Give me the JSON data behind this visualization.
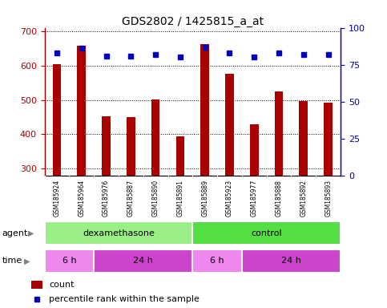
{
  "title": "GDS2802 / 1425815_a_at",
  "samples": [
    "GSM185924",
    "GSM185964",
    "GSM185976",
    "GSM185887",
    "GSM185890",
    "GSM185891",
    "GSM185889",
    "GSM185923",
    "GSM185977",
    "GSM185888",
    "GSM185892",
    "GSM185893"
  ],
  "counts": [
    603,
    657,
    452,
    449,
    501,
    393,
    662,
    576,
    430,
    525,
    496,
    492
  ],
  "percentile_ranks": [
    83,
    86,
    81,
    81,
    82,
    80,
    87,
    83,
    80,
    83,
    82,
    82
  ],
  "ylim_left": [
    280,
    710
  ],
  "ylim_right": [
    0,
    100
  ],
  "yticks_left": [
    300,
    400,
    500,
    600,
    700
  ],
  "yticks_right": [
    0,
    25,
    50,
    75,
    100
  ],
  "bar_color": "#aa0000",
  "dot_color": "#0000bb",
  "agent_row": [
    {
      "label": "dexamethasone",
      "start": 0,
      "end": 6,
      "color": "#99ee88"
    },
    {
      "label": "control",
      "start": 6,
      "end": 12,
      "color": "#55dd44"
    }
  ],
  "time_row": [
    {
      "label": "6 h",
      "start": 0,
      "end": 2,
      "color": "#ee88ee"
    },
    {
      "label": "24 h",
      "start": 2,
      "end": 6,
      "color": "#cc44cc"
    },
    {
      "label": "6 h",
      "start": 6,
      "end": 8,
      "color": "#ee88ee"
    },
    {
      "label": "24 h",
      "start": 8,
      "end": 12,
      "color": "#cc44cc"
    }
  ],
  "xlabel_area_color": "#c8c8c8",
  "bg_color": "#ffffff",
  "agent_label": "agent",
  "time_label": "time",
  "legend_count_label": "count",
  "legend_percentile_label": "percentile rank within the sample",
  "title_fontsize": 10,
  "tick_fontsize": 8,
  "bar_width": 0.35,
  "ymin": 280
}
